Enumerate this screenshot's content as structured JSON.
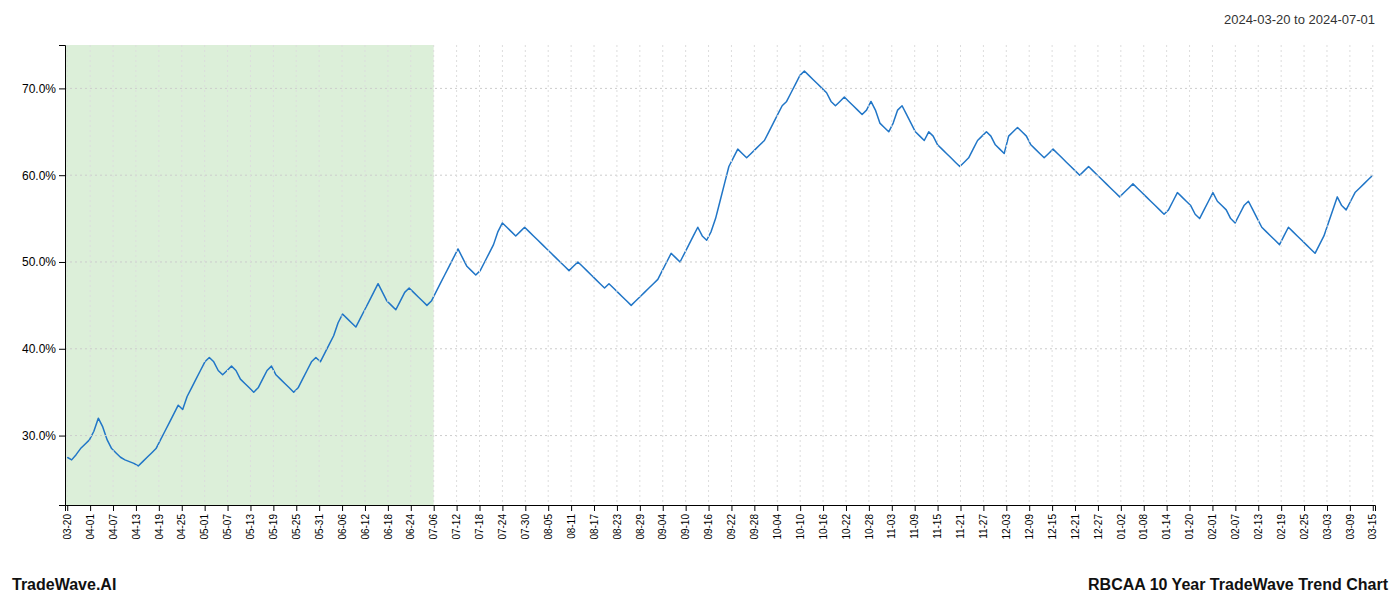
{
  "chart_data": {
    "type": "line",
    "subtitle": "2024-03-20 to 2024-07-01",
    "annotations": [
      "TradeWave.AI"
    ],
    "title": "RBCAA 10 Year TradeWave Trend Chart",
    "color": "#2176c7",
    "grid": true,
    "shaded": {
      "x": [
        -0.5,
        82.5263
      ],
      "color": "#d6ecd2"
    },
    "xlim": [
      -0.5,
      294.5
    ],
    "xticks": [
      {
        "value": 0,
        "label": "03-20"
      },
      {
        "value": 5.1579,
        "label": "04-01"
      },
      {
        "value": 10.3158,
        "label": "04-07"
      },
      {
        "value": 15.4737,
        "label": "04-13"
      },
      {
        "value": 20.6316,
        "label": "04-19"
      },
      {
        "value": 25.7895,
        "label": "04-25"
      },
      {
        "value": 30.9474,
        "label": "05-01"
      },
      {
        "value": 36.1053,
        "label": "05-07"
      },
      {
        "value": 41.2632,
        "label": "05-13"
      },
      {
        "value": 46.4211,
        "label": "05-19"
      },
      {
        "value": 51.5789,
        "label": "05-25"
      },
      {
        "value": 56.7368,
        "label": "05-31"
      },
      {
        "value": 61.8947,
        "label": "06-06"
      },
      {
        "value": 67.0526,
        "label": "06-12"
      },
      {
        "value": 72.2105,
        "label": "06-18"
      },
      {
        "value": 77.3684,
        "label": "06-24"
      },
      {
        "value": 82.5263,
        "label": "07-06"
      },
      {
        "value": 87.6842,
        "label": "07-12"
      },
      {
        "value": 92.8421,
        "label": "07-18"
      },
      {
        "value": 98,
        "label": "07-24"
      },
      {
        "value": 103.1579,
        "label": "07-30"
      },
      {
        "value": 108.3158,
        "label": "08-05"
      },
      {
        "value": 113.4737,
        "label": "08-11"
      },
      {
        "value": 118.6316,
        "label": "08-17"
      },
      {
        "value": 123.7895,
        "label": "08-23"
      },
      {
        "value": 128.9474,
        "label": "08-29"
      },
      {
        "value": 134.1053,
        "label": "09-04"
      },
      {
        "value": 139.2632,
        "label": "09-10"
      },
      {
        "value": 144.4211,
        "label": "09-16"
      },
      {
        "value": 149.5789,
        "label": "09-22"
      },
      {
        "value": 154.7368,
        "label": "09-28"
      },
      {
        "value": 159.8947,
        "label": "10-04"
      },
      {
        "value": 165.0526,
        "label": "10-10"
      },
      {
        "value": 170.2105,
        "label": "10-16"
      },
      {
        "value": 175.3684,
        "label": "10-22"
      },
      {
        "value": 180.5263,
        "label": "10-28"
      },
      {
        "value": 185.6842,
        "label": "11-03"
      },
      {
        "value": 190.8421,
        "label": "11-09"
      },
      {
        "value": 196,
        "label": "11-15"
      },
      {
        "value": 201.1579,
        "label": "11-21"
      },
      {
        "value": 206.3158,
        "label": "11-27"
      },
      {
        "value": 211.4737,
        "label": "12-03"
      },
      {
        "value": 216.6316,
        "label": "12-09"
      },
      {
        "value": 221.7895,
        "label": "12-15"
      },
      {
        "value": 226.9474,
        "label": "12-21"
      },
      {
        "value": 232.1053,
        "label": "12-27"
      },
      {
        "value": 237.2632,
        "label": "01-02"
      },
      {
        "value": 242.4211,
        "label": "01-08"
      },
      {
        "value": 247.5789,
        "label": "01-14"
      },
      {
        "value": 252.7368,
        "label": "01-20"
      },
      {
        "value": 257.8947,
        "label": "02-01"
      },
      {
        "value": 263.0526,
        "label": "02-07"
      },
      {
        "value": 268.2105,
        "label": "02-13"
      },
      {
        "value": 273.3684,
        "label": "02-19"
      },
      {
        "value": 278.5263,
        "label": "02-25"
      },
      {
        "value": 283.6842,
        "label": "03-03"
      },
      {
        "value": 288.8421,
        "label": "03-09"
      },
      {
        "value": 294,
        "label": "03-15"
      }
    ],
    "ylim": [
      22,
      75
    ],
    "yticks": [
      {
        "value": 30.0,
        "label": "30.0%"
      },
      {
        "value": 40.0,
        "label": "40.0%"
      },
      {
        "value": 50.0,
        "label": "50.0%"
      },
      {
        "value": 60.0,
        "label": "60.0%"
      },
      {
        "value": 70.0,
        "label": "70.0%"
      }
    ],
    "x": [
      0,
      1,
      2,
      3,
      4,
      5,
      6,
      7,
      8,
      9,
      10,
      11,
      12,
      13,
      14,
      15,
      16,
      17,
      18,
      19,
      20,
      21,
      22,
      23,
      24,
      25,
      26,
      27,
      28,
      29,
      30,
      31,
      32,
      33,
      34,
      35,
      36,
      37,
      38,
      39,
      40,
      41,
      42,
      43,
      44,
      45,
      46,
      47,
      48,
      49,
      50,
      51,
      52,
      53,
      54,
      55,
      56,
      57,
      58,
      59,
      60,
      61,
      62,
      63,
      64,
      65,
      66,
      67,
      68,
      69,
      70,
      71,
      72,
      73,
      74,
      75,
      76,
      77,
      78,
      79,
      80,
      81,
      82,
      83,
      84,
      85,
      86,
      87,
      88,
      89,
      90,
      91,
      92,
      93,
      94,
      95,
      96,
      97,
      98,
      99,
      100,
      101,
      102,
      103,
      104,
      105,
      106,
      107,
      108,
      109,
      110,
      111,
      112,
      113,
      114,
      115,
      116,
      117,
      118,
      119,
      120,
      121,
      122,
      123,
      124,
      125,
      126,
      127,
      128,
      129,
      130,
      131,
      132,
      133,
      134,
      135,
      136,
      137,
      138,
      139,
      140,
      141,
      142,
      143,
      144,
      145,
      146,
      147,
      148,
      149,
      150,
      151,
      152,
      153,
      154,
      155,
      156,
      157,
      158,
      159,
      160,
      161,
      162,
      163,
      164,
      165,
      166,
      167,
      168,
      169,
      170,
      171,
      172,
      173,
      174,
      175,
      176,
      177,
      178,
      179,
      180,
      181,
      182,
      183,
      184,
      185,
      186,
      187,
      188,
      189,
      190,
      191,
      192,
      193,
      194,
      195,
      196,
      197,
      198,
      199,
      200,
      201,
      202,
      203,
      204,
      205,
      206,
      207,
      208,
      209,
      210,
      211,
      212,
      213,
      214,
      215,
      216,
      217,
      218,
      219,
      220,
      221,
      222,
      223,
      224,
      225,
      226,
      227,
      228,
      229,
      230,
      231,
      232,
      233,
      234,
      235,
      236,
      237,
      238,
      239,
      240,
      241,
      242,
      243,
      244,
      245,
      246,
      247,
      248,
      249,
      250,
      251,
      252,
      253,
      254,
      255,
      256,
      257,
      258,
      259,
      260,
      261,
      262,
      263,
      264,
      265,
      266,
      267,
      268,
      269,
      270,
      271,
      272,
      273,
      274,
      275,
      276,
      277,
      278,
      279,
      280,
      281,
      282,
      283,
      284,
      285,
      286,
      287,
      288,
      289,
      290,
      291,
      292,
      293,
      294
    ],
    "values": [
      27.5,
      27.2,
      27.8,
      28.5,
      29.0,
      29.5,
      30.5,
      32.0,
      31.0,
      29.5,
      28.5,
      28.0,
      27.5,
      27.2,
      27.0,
      26.8,
      26.5,
      27.0,
      27.5,
      28.0,
      28.5,
      29.5,
      30.5,
      31.5,
      32.5,
      33.5,
      33.0,
      34.5,
      35.5,
      36.5,
      37.5,
      38.5,
      39.0,
      38.5,
      37.5,
      37.0,
      37.5,
      38.0,
      37.5,
      36.5,
      36.0,
      35.5,
      35.0,
      35.5,
      36.5,
      37.5,
      38.0,
      37.0,
      36.5,
      36.0,
      35.5,
      35.0,
      35.5,
      36.5,
      37.5,
      38.5,
      39.0,
      38.5,
      39.5,
      40.5,
      41.5,
      43.0,
      44.0,
      43.5,
      43.0,
      42.5,
      43.5,
      44.5,
      45.5,
      46.5,
      47.5,
      46.5,
      45.5,
      45.0,
      44.5,
      45.5,
      46.5,
      47.0,
      46.5,
      46.0,
      45.5,
      45.0,
      45.5,
      46.5,
      47.5,
      48.5,
      49.5,
      50.5,
      51.5,
      50.5,
      49.5,
      49.0,
      48.5,
      49.0,
      50.0,
      51.0,
      52.0,
      53.5,
      54.5,
      54.0,
      53.5,
      53.0,
      53.5,
      54.0,
      53.5,
      53.0,
      52.5,
      52.0,
      51.5,
      51.0,
      50.5,
      50.0,
      49.5,
      49.0,
      49.5,
      50.0,
      49.5,
      49.0,
      48.5,
      48.0,
      47.5,
      47.0,
      47.5,
      47.0,
      46.5,
      46.0,
      45.5,
      45.0,
      45.5,
      46.0,
      46.5,
      47.0,
      47.5,
      48.0,
      49.0,
      50.0,
      51.0,
      50.5,
      50.0,
      51.0,
      52.0,
      53.0,
      54.0,
      53.0,
      52.5,
      53.5,
      55.0,
      57.0,
      59.0,
      61.0,
      62.0,
      63.0,
      62.5,
      62.0,
      62.5,
      63.0,
      63.5,
      64.0,
      65.0,
      66.0,
      67.0,
      68.0,
      68.5,
      69.5,
      70.5,
      71.5,
      72.0,
      71.5,
      71.0,
      70.5,
      70.0,
      69.5,
      68.5,
      68.0,
      68.5,
      69.0,
      68.5,
      68.0,
      67.5,
      67.0,
      67.5,
      68.5,
      67.5,
      66.0,
      65.5,
      65.0,
      66.0,
      67.5,
      68.0,
      67.0,
      66.0,
      65.0,
      64.5,
      64.0,
      65.0,
      64.5,
      63.5,
      63.0,
      62.5,
      62.0,
      61.5,
      61.0,
      61.5,
      62.0,
      63.0,
      64.0,
      64.5,
      65.0,
      64.5,
      63.5,
      63.0,
      62.5,
      64.5,
      65.0,
      65.5,
      65.0,
      64.5,
      63.5,
      63.0,
      62.5,
      62.0,
      62.5,
      63.0,
      62.5,
      62.0,
      61.5,
      61.0,
      60.5,
      60.0,
      60.5,
      61.0,
      60.5,
      60.0,
      59.5,
      59.0,
      58.5,
      58.0,
      57.5,
      58.0,
      58.5,
      59.0,
      58.5,
      58.0,
      57.5,
      57.0,
      56.5,
      56.0,
      55.5,
      56.0,
      57.0,
      58.0,
      57.5,
      57.0,
      56.5,
      55.5,
      55.0,
      56.0,
      57.0,
      58.0,
      57.0,
      56.5,
      56.0,
      55.0,
      54.5,
      55.5,
      56.5,
      57.0,
      56.0,
      55.0,
      54.0,
      53.5,
      53.0,
      52.5,
      52.0,
      53.0,
      54.0,
      53.5,
      53.0,
      52.5,
      52.0,
      51.5,
      51.0,
      52.0,
      53.0,
      54.5,
      56.0,
      57.5,
      56.5,
      56.0,
      57.0,
      58.0,
      58.5,
      59.0,
      59.5,
      60.0
    ]
  }
}
